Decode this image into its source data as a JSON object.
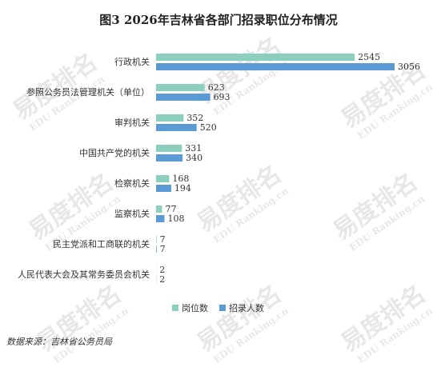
{
  "chart_data": {
    "type": "hbar",
    "title": "图3  2026年吉林省各部门招录职位分布情况",
    "categories": [
      "行政机关",
      "参照公务员法管理机关（单位）",
      "审判机关",
      "中国共产党的机关",
      "检察机关",
      "监察机关",
      "民主党派和工商联的机关",
      "人民代表大会及其常务委员会机关"
    ],
    "series": [
      {
        "name": "岗位数",
        "color": "#8ccfbf",
        "values": [
          2545,
          623,
          352,
          331,
          168,
          77,
          7,
          2
        ]
      },
      {
        "name": "招录人数",
        "color": "#5b9bd5",
        "values": [
          3056,
          693,
          520,
          340,
          194,
          108,
          7,
          2
        ]
      }
    ],
    "legend": "bottom",
    "source": "数据来源：吉林省公务员局",
    "watermark": {
      "text": "易度排名",
      "sub": "EDU Ranking.cn"
    }
  }
}
